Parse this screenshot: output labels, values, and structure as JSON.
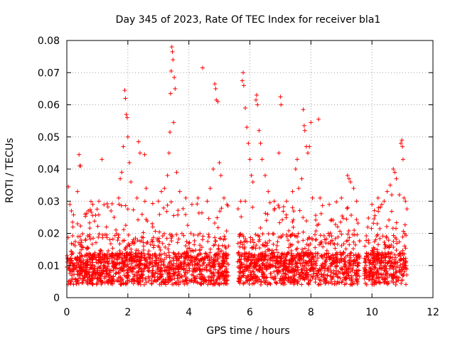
{
  "chart_data": {
    "type": "scatter",
    "title": "Day 345 of 2023, Rate Of TEC Index for receiver bla1",
    "xlabel": "GPS time / hours",
    "ylabel": "ROTI / TECUs",
    "xlim": [
      0,
      12
    ],
    "ylim": [
      0,
      0.08
    ],
    "xticks": [
      0,
      2,
      4,
      6,
      8,
      10,
      12
    ],
    "xtick_labels": [
      "0",
      "2",
      "4",
      "6",
      "8",
      "10",
      "12"
    ],
    "yticks": [
      0,
      0.01,
      0.02,
      0.03,
      0.04,
      0.05,
      0.06,
      0.07,
      0.08
    ],
    "ytick_labels": [
      "0",
      "0.01",
      "0.02",
      "0.03",
      "0.04",
      "0.05",
      "0.06",
      "0.07",
      "0.08"
    ],
    "grid": true,
    "marker": "plus",
    "color": "#ff0000",
    "data_coverage": [
      [
        0.0,
        5.3
      ],
      [
        5.6,
        9.6
      ],
      [
        9.75,
        11.15
      ]
    ],
    "series": [
      {
        "name": "ROTI",
        "points": [
          [
            0.05,
            0.0345
          ],
          [
            0.1,
            0.029
          ],
          [
            0.15,
            0.027
          ],
          [
            0.2,
            0.022
          ],
          [
            0.35,
            0.033
          ],
          [
            0.4,
            0.0445
          ],
          [
            0.42,
            0.041
          ],
          [
            0.45,
            0.041
          ],
          [
            0.6,
            0.026
          ],
          [
            0.7,
            0.027
          ],
          [
            0.85,
            0.029
          ],
          [
            1.05,
            0.03
          ],
          [
            1.15,
            0.043
          ],
          [
            1.3,
            0.022
          ],
          [
            1.45,
            0.027
          ],
          [
            1.55,
            0.025
          ],
          [
            1.7,
            0.031
          ],
          [
            1.75,
            0.037
          ],
          [
            1.8,
            0.039
          ],
          [
            1.85,
            0.047
          ],
          [
            1.9,
            0.0645
          ],
          [
            1.92,
            0.062
          ],
          [
            1.95,
            0.057
          ],
          [
            1.98,
            0.056
          ],
          [
            2.0,
            0.05
          ],
          [
            2.05,
            0.042
          ],
          [
            2.1,
            0.036
          ],
          [
            2.3,
            0.031
          ],
          [
            2.35,
            0.0485
          ],
          [
            2.4,
            0.045
          ],
          [
            2.55,
            0.0445
          ],
          [
            2.6,
            0.034
          ],
          [
            2.8,
            0.023
          ],
          [
            3.0,
            0.03
          ],
          [
            3.1,
            0.033
          ],
          [
            3.2,
            0.034
          ],
          [
            3.3,
            0.038
          ],
          [
            3.35,
            0.045
          ],
          [
            3.38,
            0.0515
          ],
          [
            3.4,
            0.0635
          ],
          [
            3.42,
            0.0705
          ],
          [
            3.44,
            0.078
          ],
          [
            3.46,
            0.0765
          ],
          [
            3.48,
            0.074
          ],
          [
            3.5,
            0.0545
          ],
          [
            3.52,
            0.0685
          ],
          [
            3.55,
            0.065
          ],
          [
            3.6,
            0.039
          ],
          [
            3.7,
            0.033
          ],
          [
            3.9,
            0.031
          ],
          [
            4.1,
            0.029
          ],
          [
            4.3,
            0.031
          ],
          [
            4.45,
            0.0715
          ],
          [
            4.6,
            0.03
          ],
          [
            4.7,
            0.034
          ],
          [
            4.8,
            0.04
          ],
          [
            4.85,
            0.0665
          ],
          [
            4.88,
            0.065
          ],
          [
            4.9,
            0.0615
          ],
          [
            4.95,
            0.061
          ],
          [
            5.0,
            0.042
          ],
          [
            5.05,
            0.038
          ],
          [
            5.15,
            0.031
          ],
          [
            5.25,
            0.029
          ],
          [
            5.7,
            0.03
          ],
          [
            5.75,
            0.0675
          ],
          [
            5.78,
            0.07
          ],
          [
            5.8,
            0.066
          ],
          [
            5.85,
            0.059
          ],
          [
            5.9,
            0.053
          ],
          [
            5.95,
            0.048
          ],
          [
            6.0,
            0.043
          ],
          [
            6.05,
            0.038
          ],
          [
            6.1,
            0.036
          ],
          [
            6.2,
            0.0615
          ],
          [
            6.22,
            0.063
          ],
          [
            6.25,
            0.06
          ],
          [
            6.3,
            0.052
          ],
          [
            6.35,
            0.048
          ],
          [
            6.4,
            0.043
          ],
          [
            6.5,
            0.038
          ],
          [
            6.6,
            0.033
          ],
          [
            6.8,
            0.03
          ],
          [
            6.95,
            0.045
          ],
          [
            7.0,
            0.0625
          ],
          [
            7.02,
            0.06
          ],
          [
            7.2,
            0.03
          ],
          [
            7.4,
            0.033
          ],
          [
            7.5,
            0.04
          ],
          [
            7.55,
            0.043
          ],
          [
            7.6,
            0.034
          ],
          [
            7.7,
            0.037
          ],
          [
            7.75,
            0.0585
          ],
          [
            7.78,
            0.0535
          ],
          [
            7.8,
            0.052
          ],
          [
            7.85,
            0.047
          ],
          [
            7.9,
            0.045
          ],
          [
            7.95,
            0.047
          ],
          [
            8.0,
            0.0545
          ],
          [
            8.05,
            0.031
          ],
          [
            8.25,
            0.0555
          ],
          [
            8.3,
            0.031
          ],
          [
            8.6,
            0.029
          ],
          [
            9.0,
            0.031
          ],
          [
            9.2,
            0.038
          ],
          [
            9.25,
            0.037
          ],
          [
            9.3,
            0.036
          ],
          [
            9.4,
            0.034
          ],
          [
            9.5,
            0.03
          ],
          [
            10.0,
            0.029
          ],
          [
            10.2,
            0.031
          ],
          [
            10.4,
            0.03
          ],
          [
            10.5,
            0.033
          ],
          [
            10.6,
            0.035
          ],
          [
            10.65,
            0.032
          ],
          [
            10.7,
            0.04
          ],
          [
            10.75,
            0.039
          ],
          [
            10.8,
            0.037
          ],
          [
            10.9,
            0.032
          ],
          [
            10.95,
            0.048
          ],
          [
            10.98,
            0.049
          ],
          [
            11.0,
            0.047
          ],
          [
            11.02,
            0.043
          ],
          [
            11.05,
            0.031
          ],
          [
            11.1,
            0.03
          ]
        ]
      }
    ]
  }
}
